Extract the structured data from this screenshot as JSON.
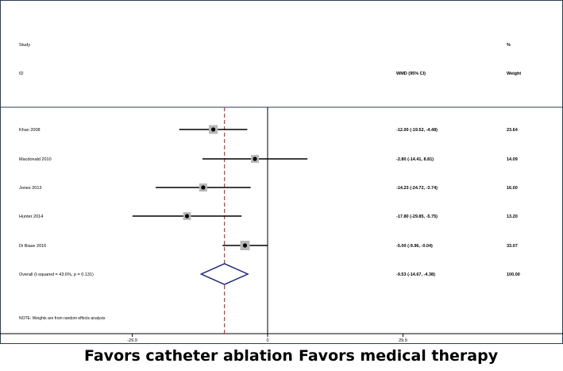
{
  "header": {
    "study_heading": "Study",
    "id_heading": "ID",
    "estimate_heading": "WMD (95% CI)",
    "weight_heading_top": "%",
    "weight_heading": "Weight"
  },
  "footnote": "NOTE: Weights are from random effects analysis",
  "captions": {
    "left": "Favors catheter ablation",
    "right": "Favors medical therapy"
  },
  "chart_data": {
    "type": "forest",
    "xlim": [
      -30,
      30
    ],
    "x_ticks": [
      -29.9,
      0,
      29.9
    ],
    "x_tick_labels": [
      "-29.9",
      "0",
      "29.9"
    ],
    "null_line": 0,
    "pooled_line": -9.53,
    "studies": [
      {
        "label": "Khan 2008",
        "estimate": -12.0,
        "lower": -19.52,
        "upper": -4.48,
        "ci_text": "-12.00 (-19.52, -4.48)",
        "weight": "23.64"
      },
      {
        "label": "Macdonald 2010",
        "estimate": -2.8,
        "lower": -14.41,
        "upper": 8.81,
        "ci_text": "-2.80 (-14.41, 8.81)",
        "weight": "14.09"
      },
      {
        "label": "Jones 2013",
        "estimate": -14.23,
        "lower": -24.72,
        "upper": -3.74,
        "ci_text": "-14.23 (-24.72, -3.74)",
        "weight": "16.00"
      },
      {
        "label": "Hunter 2014",
        "estimate": -17.8,
        "lower": -29.85,
        "upper": -5.75,
        "ci_text": "-17.80 (-29.85, -5.75)",
        "weight": "13.20"
      },
      {
        "label": "Di Biase 2016",
        "estimate": -5.0,
        "lower": -9.96,
        "upper": -0.04,
        "ci_text": "-5.00 (-9.96, -0.04)",
        "weight": "33.07"
      }
    ],
    "overall": {
      "label": "Overall  (I-squared = 43.6%, p = 0.131)",
      "estimate": -9.53,
      "lower": -14.67,
      "upper": -4.38,
      "ci_text": "-9.53 (-14.67, -4.38)",
      "weight": "100.00"
    },
    "colors": {
      "ci_line": "#000000",
      "weight_box": "#b8b8b8",
      "point": "#000000",
      "diamond": "#1f2a78",
      "pooled_line": "#c0392b",
      "null_line": "#000000",
      "frame": "#2c3e50"
    }
  }
}
